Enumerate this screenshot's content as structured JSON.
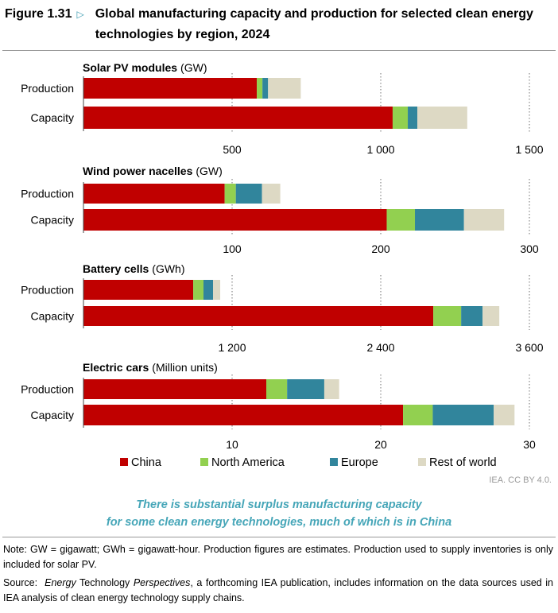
{
  "figure": {
    "number": "Figure 1.31",
    "title": "Global manufacturing capacity and production for selected clean energy technologies by region, 2024"
  },
  "chart_data": [
    {
      "type": "bar",
      "orientation": "horizontal",
      "stacked": true,
      "title_bold": "Solar PV modules",
      "title_unit": "(GW)",
      "categories": [
        "Production",
        "Capacity"
      ],
      "ticks": [
        500,
        1000,
        1500
      ],
      "tick_labels": [
        "500",
        "1 000",
        "1 500"
      ],
      "xlim": [
        0,
        1500
      ],
      "series": [
        {
          "name": "China",
          "values": [
            583,
            1040
          ]
        },
        {
          "name": "North America",
          "values": [
            19,
            51
          ]
        },
        {
          "name": "Europe",
          "values": [
            19,
            32
          ]
        },
        {
          "name": "Rest of world",
          "values": [
            110,
            168
          ]
        }
      ]
    },
    {
      "type": "bar",
      "orientation": "horizontal",
      "stacked": true,
      "title_bold": "Wind power nacelles",
      "title_unit": "(GW)",
      "categories": [
        "Production",
        "Capacity"
      ],
      "ticks": [
        100,
        200,
        300
      ],
      "tick_labels": [
        "100",
        "200",
        "300"
      ],
      "xlim": [
        0,
        300
      ],
      "series": [
        {
          "name": "China",
          "values": [
            95,
            204
          ]
        },
        {
          "name": "North America",
          "values": [
            7.5,
            19
          ]
        },
        {
          "name": "Europe",
          "values": [
            17.6,
            33
          ]
        },
        {
          "name": "Rest of world",
          "values": [
            12.3,
            27
          ]
        }
      ]
    },
    {
      "type": "bar",
      "orientation": "horizontal",
      "stacked": true,
      "title_bold": "Battery cells",
      "title_unit": "(GWh)",
      "categories": [
        "Production",
        "Capacity"
      ],
      "ticks": [
        1200,
        2400,
        3600
      ],
      "tick_labels": [
        "1 200",
        "2 400",
        "3 600"
      ],
      "xlim": [
        0,
        3600
      ],
      "series": [
        {
          "name": "China",
          "values": [
            886,
            2824
          ]
        },
        {
          "name": "North America",
          "values": [
            83,
            225
          ]
        },
        {
          "name": "Europe",
          "values": [
            77,
            173
          ]
        },
        {
          "name": "Rest of world",
          "values": [
            58,
            135
          ]
        }
      ]
    },
    {
      "type": "bar",
      "orientation": "horizontal",
      "stacked": true,
      "title_bold": "Electric cars",
      "title_unit": "(Million units)",
      "categories": [
        "Production",
        "Capacity"
      ],
      "ticks": [
        10,
        20,
        30
      ],
      "tick_labels": [
        "10",
        "20",
        "30"
      ],
      "xlim": [
        0,
        30
      ],
      "series": [
        {
          "name": "China",
          "values": [
            12.3,
            21.5
          ]
        },
        {
          "name": "North America",
          "values": [
            1.4,
            2.0
          ]
        },
        {
          "name": "Europe",
          "values": [
            2.5,
            4.1
          ]
        },
        {
          "name": "Rest of world",
          "values": [
            1.0,
            1.4
          ]
        }
      ]
    }
  ],
  "legend": {
    "placement": "bottom",
    "items": [
      {
        "name": "China",
        "color": "#c00000"
      },
      {
        "name": "North America",
        "color": "#92d050"
      },
      {
        "name": "Europe",
        "color": "#31859c"
      },
      {
        "name": "Rest of world",
        "color": "#ddd9c4"
      }
    ]
  },
  "grid": "vertical dotted",
  "credit": "IEA. CC BY 4.0.",
  "takeaway": [
    "There is substantial surplus manufacturing capacity",
    "for some clean energy technologies, much of which is in China"
  ],
  "note": "Note: GW = gigawatt; GWh = gigawatt-hour. Production figures are estimates. Production used to supply inventories is only included for solar PV.",
  "source": {
    "label": "Source:",
    "italic1": "Energy",
    "plain1": " Technology ",
    "italic2": "Perspectives",
    "rest": ", a forthcoming IEA publication, includes information on the data sources used in IEA analysis of clean energy technology supply chains."
  }
}
